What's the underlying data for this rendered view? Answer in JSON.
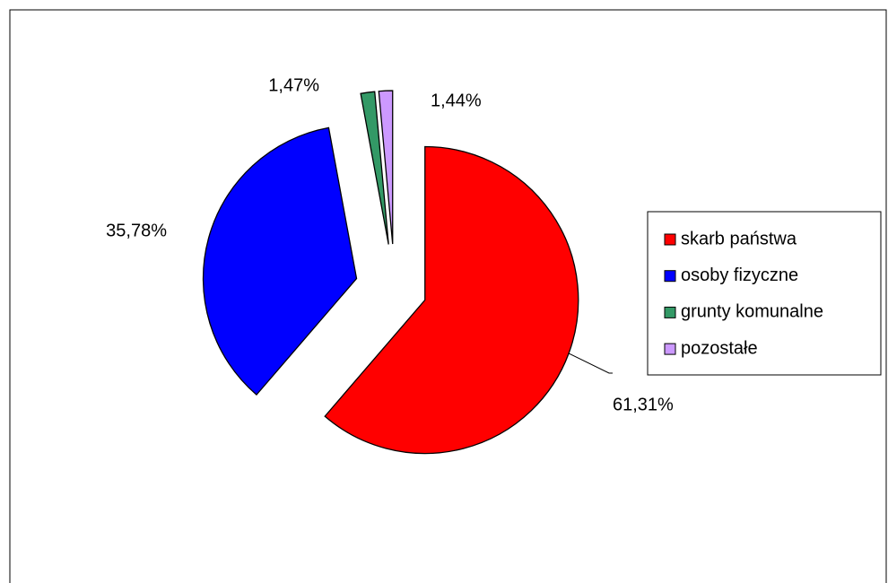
{
  "chart_data": {
    "type": "pie",
    "categories": [
      "skarb państwa",
      "osoby fizyczne",
      "grunty komunalne",
      "pozostałe"
    ],
    "values": [
      61.31,
      35.78,
      1.47,
      1.44
    ],
    "value_labels": [
      "61,31%",
      "35,78%",
      "1,47%",
      "1,44%"
    ],
    "colors": [
      "#ff0000",
      "#0000ff",
      "#339966",
      "#cc99ff"
    ],
    "legend": "right"
  }
}
